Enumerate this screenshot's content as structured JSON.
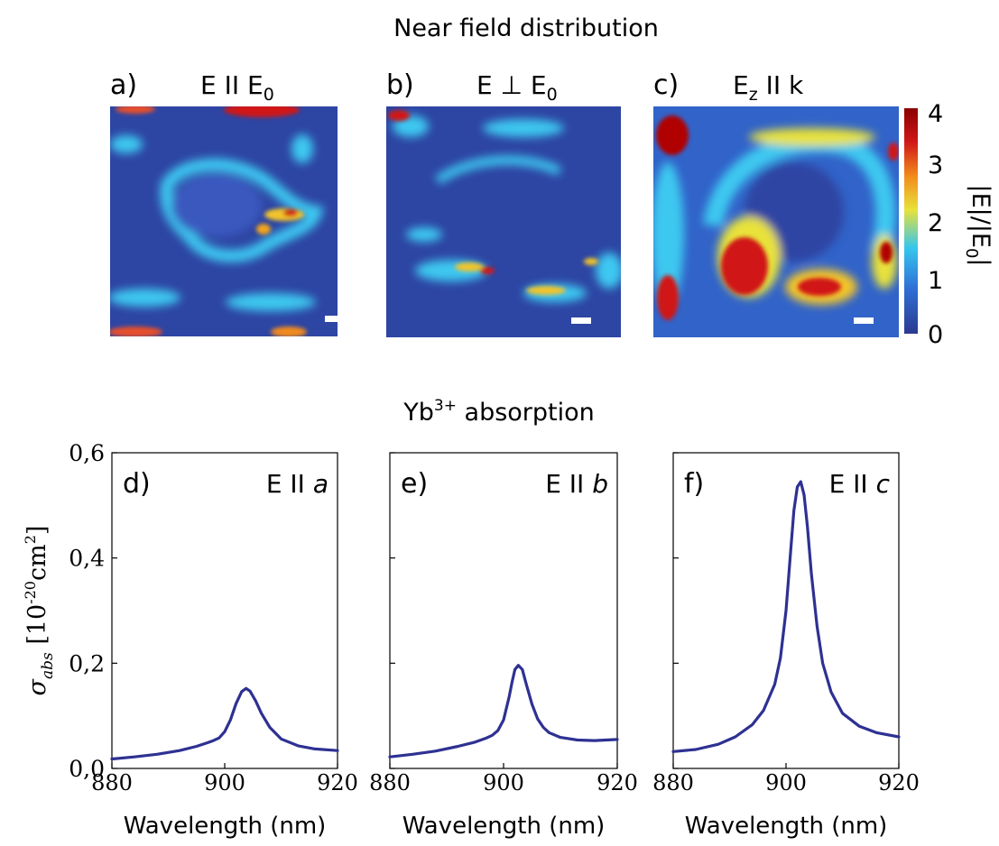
{
  "top_title": "Near field distribution",
  "bottom_title_base": "Yb",
  "bottom_title_sup": "3+",
  "bottom_title_rest": " absorption",
  "maps": [
    {
      "letter": "a)",
      "label_main": "E II E",
      "label_sub": "0",
      "label_tail": ""
    },
    {
      "letter": "b)",
      "label_main": "E ⊥ E",
      "label_sub": "0",
      "label_tail": ""
    },
    {
      "letter": "c)",
      "label_main": "E",
      "label_sub": "z",
      "label_tail": " II k"
    }
  ],
  "colorbar": {
    "label": "|E|/|E",
    "label_sub": "0",
    "label_end": "|",
    "ticks": [
      "0",
      "1",
      "2",
      "3",
      "4"
    ],
    "colors": [
      "#2b3a8f",
      "#2f6fd6",
      "#35c6ee",
      "#e8e23a",
      "#f28a1c",
      "#d01818",
      "#8b0000"
    ]
  },
  "chart_data": [
    {
      "type": "line",
      "panel": "d)",
      "annotation_main": "E II ",
      "annotation_italic": "a",
      "xlim": [
        880,
        920
      ],
      "ylim": [
        0.0,
        0.6
      ],
      "x_ticks": [
        "880",
        "900",
        "920"
      ],
      "y_ticks": [
        "0,0",
        "0,2",
        "0,4",
        "0,6"
      ],
      "xlabel": "Wavelength  (nm)",
      "ylabel_symbol": "σ",
      "ylabel_sub": "abs",
      "ylabel_units": "[10",
      "ylabel_exp": "-20",
      "ylabel_units2": "cm",
      "ylabel_exp2": "2",
      "ylabel_close": "]",
      "series": [
        {
          "color": "#2e3192",
          "x": [
            880,
            884,
            888,
            892,
            895,
            897,
            898,
            899,
            900,
            901,
            902,
            903,
            903.8,
            904.5,
            905.5,
            906.5,
            908,
            910,
            913,
            916,
            920
          ],
          "y": [
            0.018,
            0.022,
            0.027,
            0.034,
            0.042,
            0.049,
            0.053,
            0.058,
            0.07,
            0.092,
            0.123,
            0.146,
            0.152,
            0.147,
            0.128,
            0.105,
            0.078,
            0.056,
            0.043,
            0.037,
            0.034
          ]
        }
      ]
    },
    {
      "type": "line",
      "panel": "e)",
      "annotation_main": "E II ",
      "annotation_italic": "b",
      "xlim": [
        880,
        920
      ],
      "ylim": [
        0.0,
        0.6
      ],
      "x_ticks": [
        "880",
        "900",
        "920"
      ],
      "xlabel": "Wavelength  (nm)",
      "series": [
        {
          "color": "#2e3192",
          "x": [
            880,
            884,
            888,
            892,
            895,
            897,
            898,
            899,
            900,
            901,
            901.5,
            902,
            902.6,
            903.3,
            904,
            905,
            906,
            907,
            908,
            910,
            913,
            916,
            920
          ],
          "y": [
            0.022,
            0.027,
            0.033,
            0.042,
            0.05,
            0.058,
            0.063,
            0.072,
            0.092,
            0.137,
            0.165,
            0.188,
            0.196,
            0.188,
            0.16,
            0.122,
            0.094,
            0.078,
            0.068,
            0.059,
            0.054,
            0.053,
            0.055
          ]
        }
      ]
    },
    {
      "type": "line",
      "panel": "f)",
      "annotation_main": "E II ",
      "annotation_italic": "c",
      "xlim": [
        880,
        920
      ],
      "ylim": [
        0.0,
        0.6
      ],
      "x_ticks": [
        "880",
        "900",
        "920"
      ],
      "xlabel": "Wavelength (nm)",
      "series": [
        {
          "color": "#2e3192",
          "x": [
            880,
            884,
            888,
            891,
            894,
            896,
            898,
            899,
            900,
            900.8,
            901.4,
            902,
            902.6,
            903.2,
            903.8,
            904.5,
            905.5,
            906.5,
            908,
            910,
            913,
            916,
            920
          ],
          "y": [
            0.032,
            0.036,
            0.046,
            0.06,
            0.083,
            0.11,
            0.16,
            0.21,
            0.3,
            0.41,
            0.49,
            0.535,
            0.545,
            0.52,
            0.46,
            0.37,
            0.27,
            0.2,
            0.145,
            0.105,
            0.08,
            0.068,
            0.06
          ]
        }
      ]
    }
  ]
}
